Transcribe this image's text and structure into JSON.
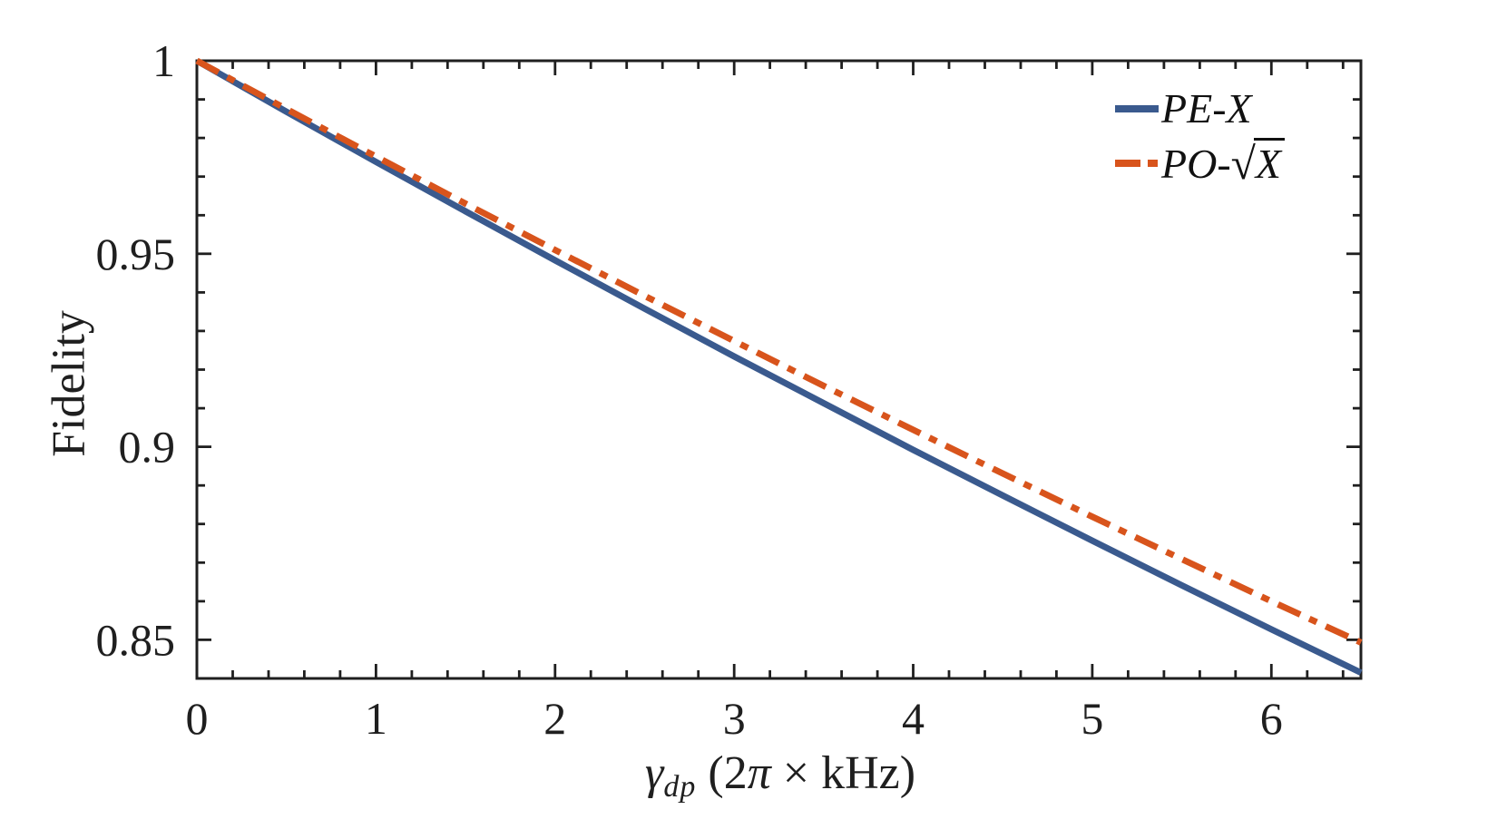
{
  "colors": {
    "frame": "#1f1f1f",
    "text": "#1f1f1f",
    "series_blue": "#3a5a8e",
    "series_orange": "#d8541c",
    "background": "#ffffff"
  },
  "axes": {
    "ylabel": "Fidelity",
    "xlabel_gamma": "γ",
    "xlabel_sub": "dp",
    "xlabel_pre": " (2",
    "xlabel_pi": "π",
    "xlabel_post": " × kHz)"
  },
  "legend": {
    "items": [
      {
        "label": "PE-X",
        "color": "#3a5a8e",
        "style": "solid"
      },
      {
        "prefix": "PO-",
        "sqrt": "√",
        "radicand": "X",
        "color": "#d8541c",
        "style": "dashdot"
      }
    ]
  },
  "chart_data": {
    "type": "line",
    "title": "",
    "xlabel": "γ_dp (2π × kHz)",
    "ylabel": "Fidelity",
    "xlim": [
      0,
      6.5
    ],
    "ylim": [
      0.84,
      1.0
    ],
    "grid": false,
    "legend_position": "top-right",
    "x_ticks": {
      "values": [
        0,
        1,
        2,
        3,
        4,
        5,
        6
      ],
      "labels": [
        "0",
        "1",
        "2",
        "3",
        "4",
        "5",
        "6"
      ],
      "minor_step": 0.2
    },
    "y_ticks": {
      "values": [
        0.85,
        0.9,
        0.95,
        1
      ],
      "labels": [
        "0.85",
        "0.9",
        "0.95",
        "1"
      ],
      "minor_step": 0.01
    },
    "x": [
      0,
      0.5,
      1,
      1.5,
      2,
      2.5,
      3,
      3.5,
      4,
      4.5,
      5,
      5.5,
      6,
      6.5
    ],
    "series": [
      {
        "name": "PE-X",
        "color": "#3a5a8e",
        "style": "solid",
        "values": [
          1.0,
          0.9868,
          0.9738,
          0.961,
          0.9483,
          0.9358,
          0.9234,
          0.9113,
          0.8992,
          0.8874,
          0.8757,
          0.8641,
          0.8527,
          0.8415
        ]
      },
      {
        "name": "PO-√X",
        "color": "#d8541c",
        "style": "dashdot",
        "values": [
          1.0,
          0.9875,
          0.9752,
          0.963,
          0.951,
          0.9391,
          0.9274,
          0.9158,
          0.9044,
          0.8931,
          0.8819,
          0.8709,
          0.86,
          0.8493
        ]
      }
    ]
  }
}
